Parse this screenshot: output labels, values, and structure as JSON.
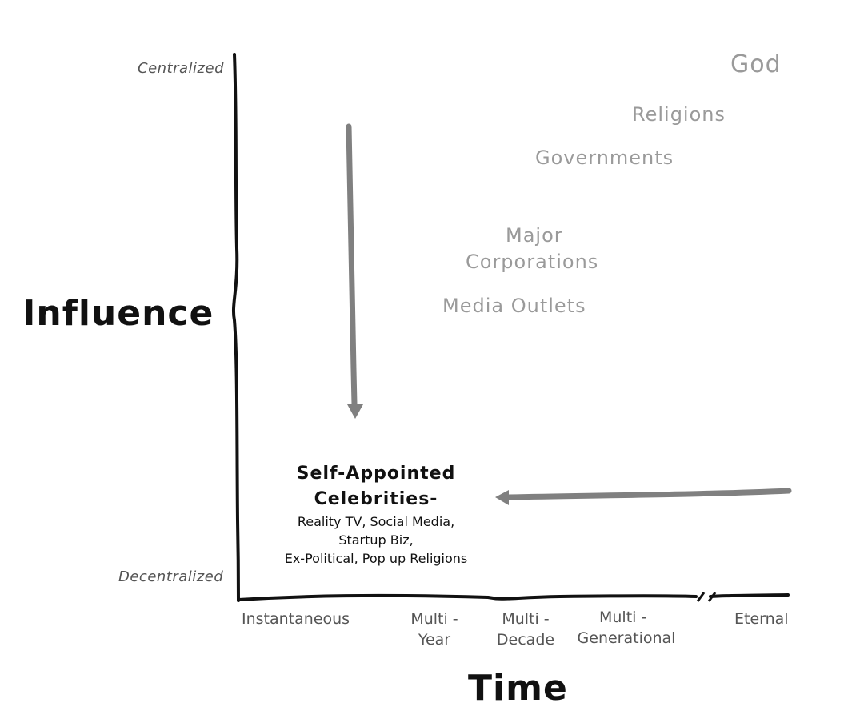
{
  "y_axis": {
    "label": "Influence",
    "top_label": "Centralized",
    "bottom_label": "Decentralized"
  },
  "x_axis": {
    "label": "Time",
    "ticks": [
      {
        "line1": "Instantaneous",
        "line2": ""
      },
      {
        "line1": "Multi -",
        "line2": "Year"
      },
      {
        "line1": "Multi -",
        "line2": "Decade"
      },
      {
        "line1": "Multi -",
        "line2": "Generational"
      },
      {
        "line1": "Eternal",
        "line2": ""
      }
    ]
  },
  "entities": {
    "god": "God",
    "religions": "Religions",
    "governments": "Governments",
    "major_corporations": {
      "line1": "Major",
      "line2": "Corporations"
    },
    "media_outlets": "Media Outlets"
  },
  "celebrities": {
    "head_line1": "Self-Appointed",
    "head_line2": "Celebrities-",
    "sub_line1": "Reality TV, Social Media,",
    "sub_line2": "Startup Biz,",
    "sub_line3": "Ex-Political, Pop up Religions"
  },
  "colors": {
    "axis": "#111111",
    "arrow": "#808080",
    "faded_text": "#9a9a9a"
  }
}
